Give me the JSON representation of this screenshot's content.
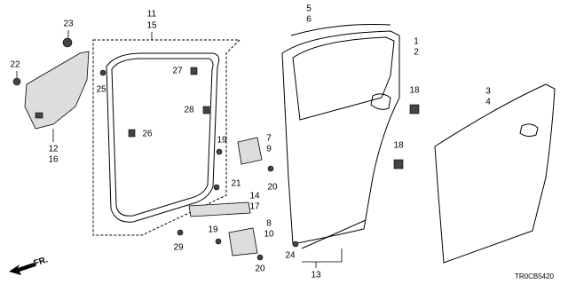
{
  "callouts": [
    "23",
    "22",
    "12",
    "16",
    "11",
    "15",
    "27",
    "25",
    "28",
    "26",
    "19",
    "7",
    "9",
    "20",
    "21",
    "14",
    "17",
    "29",
    "8",
    "10",
    "19",
    "20",
    "5",
    "6",
    "1",
    "2",
    "18",
    "3",
    "4",
    "18",
    "24",
    "13"
  ],
  "arrow_label": "FR.",
  "diagram_code": "TR0CB5420"
}
